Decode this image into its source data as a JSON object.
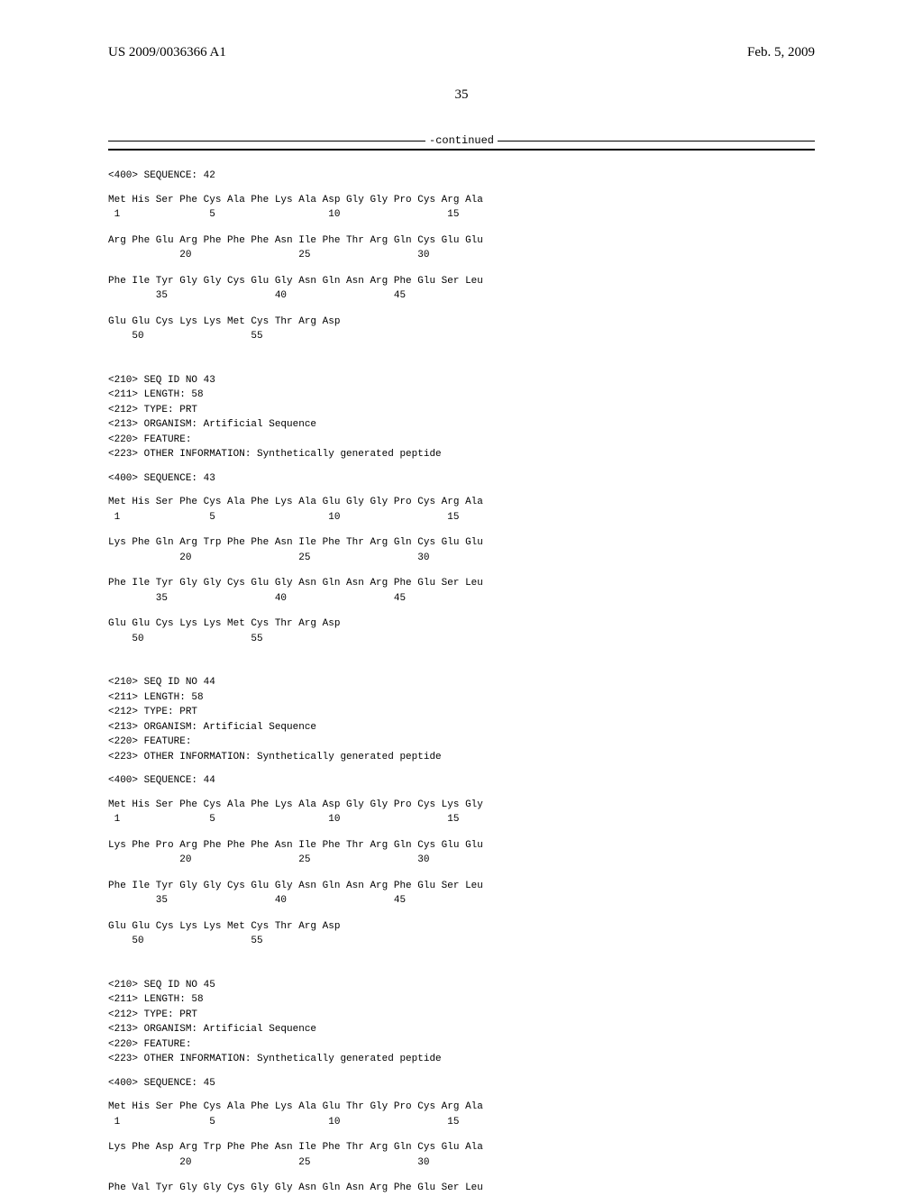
{
  "header": {
    "pub_number": "US 2009/0036366 A1",
    "pub_date": "Feb. 5, 2009",
    "page_number": "35"
  },
  "continued": "-continued",
  "sequences": [
    {
      "seq_label": "<400> SEQUENCE: 42",
      "rows": [
        {
          "aa": "Met His Ser Phe Cys Ala Phe Lys Ala Asp Gly Gly Pro Cys Arg Ala",
          "nums": " 1               5                   10                  15"
        },
        {
          "aa": "Arg Phe Glu Arg Phe Phe Phe Asn Ile Phe Thr Arg Gln Cys Glu Glu",
          "nums": "            20                  25                  30"
        },
        {
          "aa": "Phe Ile Tyr Gly Gly Cys Glu Gly Asn Gln Asn Arg Phe Glu Ser Leu",
          "nums": "        35                  40                  45"
        },
        {
          "aa": "Glu Glu Cys Lys Lys Met Cys Thr Arg Asp",
          "nums": "    50                  55"
        }
      ]
    },
    {
      "meta": [
        "<210> SEQ ID NO 43",
        "<211> LENGTH: 58",
        "<212> TYPE: PRT",
        "<213> ORGANISM: Artificial Sequence",
        "<220> FEATURE:",
        "<223> OTHER INFORMATION: Synthetically generated peptide"
      ],
      "seq_label": "<400> SEQUENCE: 43",
      "rows": [
        {
          "aa": "Met His Ser Phe Cys Ala Phe Lys Ala Glu Gly Gly Pro Cys Arg Ala",
          "nums": " 1               5                   10                  15"
        },
        {
          "aa": "Lys Phe Gln Arg Trp Phe Phe Asn Ile Phe Thr Arg Gln Cys Glu Glu",
          "nums": "            20                  25                  30"
        },
        {
          "aa": "Phe Ile Tyr Gly Gly Cys Glu Gly Asn Gln Asn Arg Phe Glu Ser Leu",
          "nums": "        35                  40                  45"
        },
        {
          "aa": "Glu Glu Cys Lys Lys Met Cys Thr Arg Asp",
          "nums": "    50                  55"
        }
      ]
    },
    {
      "meta": [
        "<210> SEQ ID NO 44",
        "<211> LENGTH: 58",
        "<212> TYPE: PRT",
        "<213> ORGANISM: Artificial Sequence",
        "<220> FEATURE:",
        "<223> OTHER INFORMATION: Synthetically generated peptide"
      ],
      "seq_label": "<400> SEQUENCE: 44",
      "rows": [
        {
          "aa": "Met His Ser Phe Cys Ala Phe Lys Ala Asp Gly Gly Pro Cys Lys Gly",
          "nums": " 1               5                   10                  15"
        },
        {
          "aa": "Lys Phe Pro Arg Phe Phe Phe Asn Ile Phe Thr Arg Gln Cys Glu Glu",
          "nums": "            20                  25                  30"
        },
        {
          "aa": "Phe Ile Tyr Gly Gly Cys Glu Gly Asn Gln Asn Arg Phe Glu Ser Leu",
          "nums": "        35                  40                  45"
        },
        {
          "aa": "Glu Glu Cys Lys Lys Met Cys Thr Arg Asp",
          "nums": "    50                  55"
        }
      ]
    },
    {
      "meta": [
        "<210> SEQ ID NO 45",
        "<211> LENGTH: 58",
        "<212> TYPE: PRT",
        "<213> ORGANISM: Artificial Sequence",
        "<220> FEATURE:",
        "<223> OTHER INFORMATION: Synthetically generated peptide"
      ],
      "seq_label": "<400> SEQUENCE: 45",
      "rows": [
        {
          "aa": "Met His Ser Phe Cys Ala Phe Lys Ala Glu Thr Gly Pro Cys Arg Ala",
          "nums": " 1               5                   10                  15"
        },
        {
          "aa": "Lys Phe Asp Arg Trp Phe Phe Asn Ile Phe Thr Arg Gln Cys Glu Ala",
          "nums": "            20                  25                  30"
        },
        {
          "aa": "Phe Val Tyr Gly Gly Cys Gly Gly Asn Gln Asn Arg Phe Glu Ser Leu",
          "nums": ""
        }
      ]
    }
  ]
}
